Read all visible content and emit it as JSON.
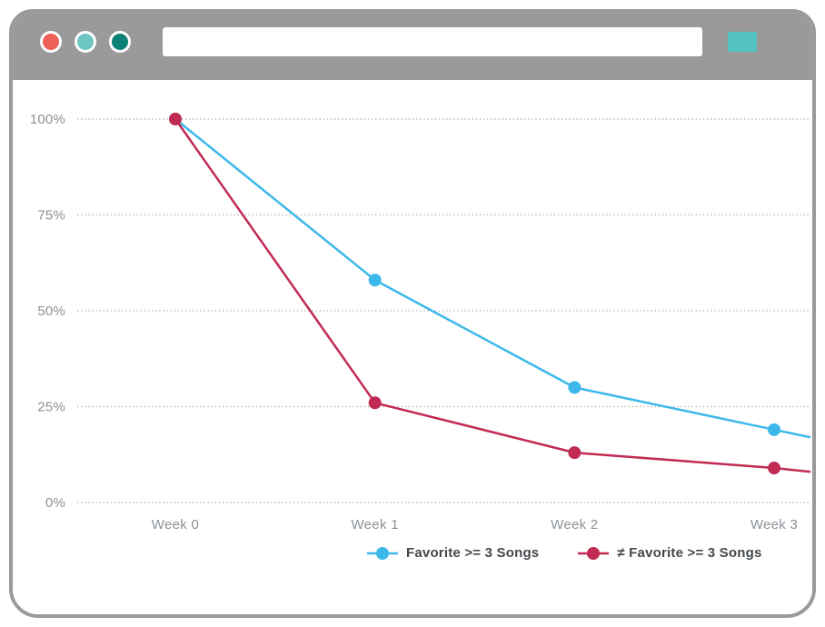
{
  "window": {
    "chrome_color": "#9a9a9a",
    "buttons": [
      {
        "name": "close",
        "color": "#ee6156"
      },
      {
        "name": "minimize",
        "color": "#6ec6c2"
      },
      {
        "name": "maximize",
        "color": "#0e8076"
      }
    ],
    "address_bar_value": "",
    "action_button_color": "#52c3c1"
  },
  "chart_data": {
    "type": "line",
    "title": "",
    "xlabel": "",
    "ylabel": "",
    "categories": [
      "Week 0",
      "Week 1",
      "Week 2",
      "Week 3"
    ],
    "series": [
      {
        "name": "Favorite >= 3 Songs",
        "color": "#3db8ea",
        "values": [
          100,
          58,
          30,
          19
        ],
        "edge_value": 17
      },
      {
        "name": "≠ Favorite >= 3 Songs",
        "color": "#c12a52",
        "values": [
          100,
          26,
          13,
          9
        ],
        "edge_value": 8
      }
    ],
    "yticks": [
      {
        "label": "100%",
        "value": 100
      },
      {
        "label": "75%",
        "value": 75
      },
      {
        "label": "50%",
        "value": 50
      },
      {
        "label": "25%",
        "value": 25
      },
      {
        "label": "0%",
        "value": 0
      }
    ],
    "ylim": [
      0,
      100
    ],
    "grid": "horizontal-dotted",
    "legend_position": "bottom",
    "marker": "circle",
    "text_color": "#8b9196",
    "grid_color": "#b0b0b0"
  }
}
